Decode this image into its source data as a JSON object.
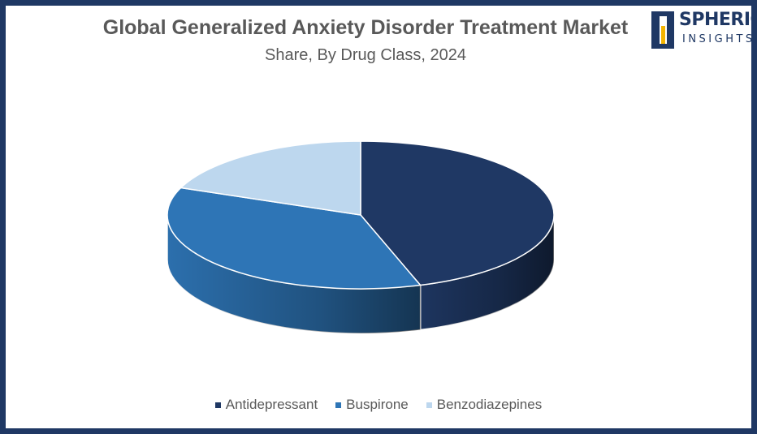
{
  "chart_data": {
    "type": "pie",
    "title": "Global Generalized Anxiety Disorder Treatment Market",
    "subtitle": "Share, By Drug Class, 2024",
    "categories": [
      "Antidepressant",
      "Buspirone",
      "Benzodiazepines"
    ],
    "values": [
      45,
      36,
      19
    ],
    "colors": [
      "#1f3864",
      "#2e75b6",
      "#bdd7ee"
    ],
    "legend_position": "bottom",
    "style": "3d"
  },
  "logo": {
    "line1": "SPHERICAL",
    "line2": "INSIGHTS"
  }
}
